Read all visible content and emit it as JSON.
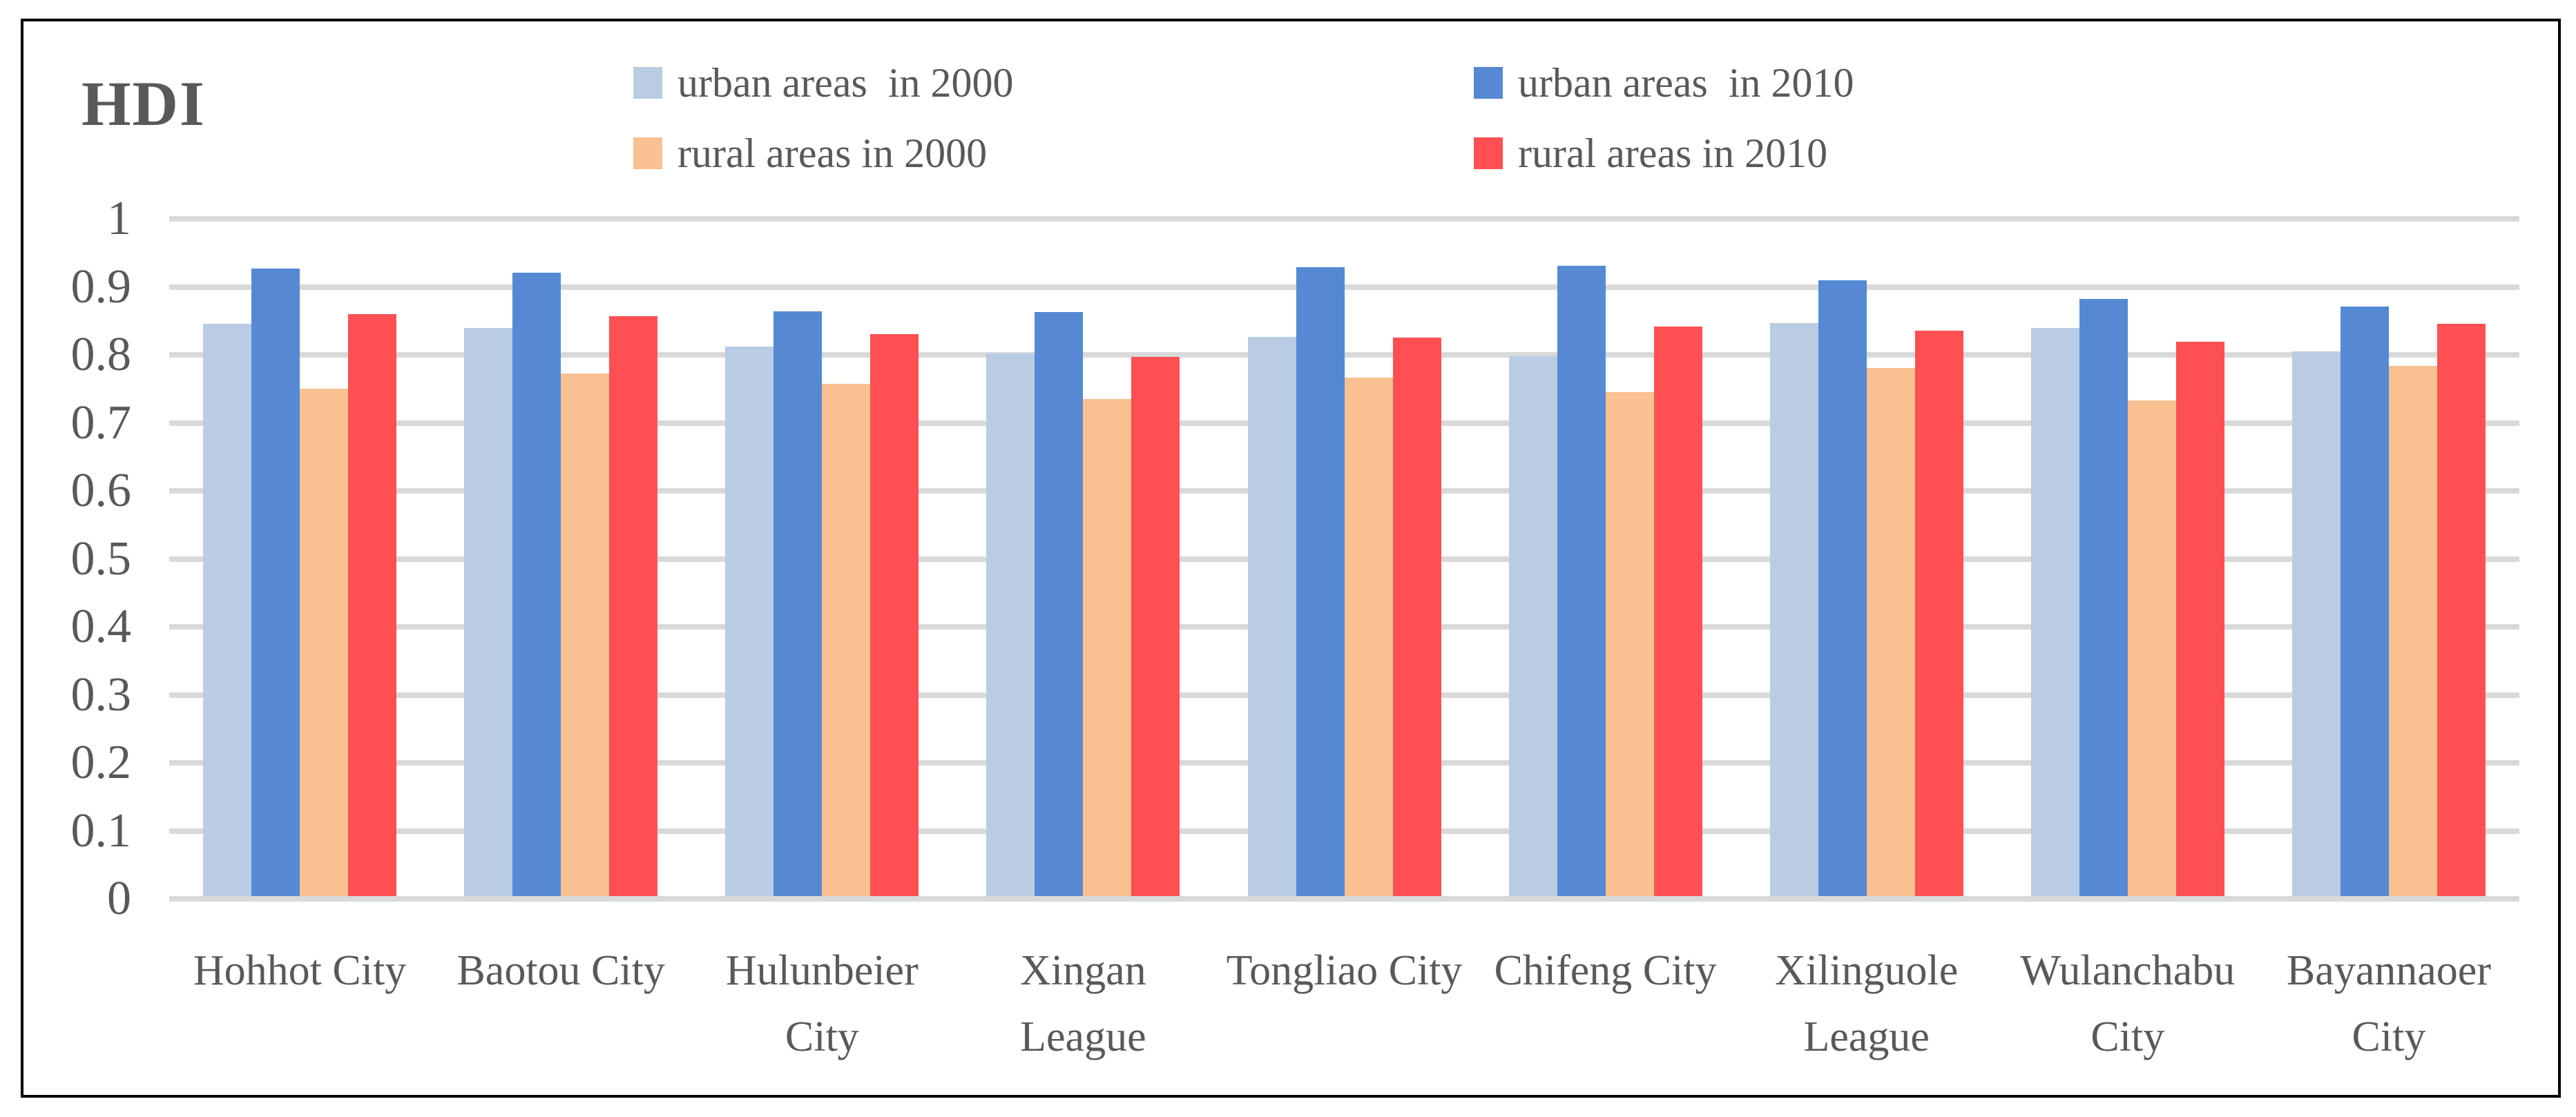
{
  "chart_data": {
    "type": "bar",
    "title": "HDI",
    "categories": [
      "Hohhot City",
      "Baotou City",
      "Hulunbeier City",
      "Xingan League",
      "Tongliao City",
      "Chifeng City",
      "Xilinguole League",
      "Wulanchabu City",
      "Bayannaoer City"
    ],
    "series": [
      {
        "name": "urban areas  in 2000",
        "color": "#B9CCE3",
        "values": [
          0.842,
          0.836,
          0.808,
          0.798,
          0.822,
          0.794,
          0.843,
          0.836,
          0.801
        ]
      },
      {
        "name": "urban areas  in 2010",
        "color": "#5589D4",
        "values": [
          0.923,
          0.917,
          0.86,
          0.859,
          0.925,
          0.927,
          0.906,
          0.878,
          0.867
        ]
      },
      {
        "name": "rural areas in 2000",
        "color": "#F9C191",
        "values": [
          0.746,
          0.769,
          0.753,
          0.731,
          0.762,
          0.741,
          0.777,
          0.729,
          0.78
        ]
      },
      {
        "name": "rural areas in 2010",
        "color": "#FE5052",
        "values": [
          0.856,
          0.853,
          0.826,
          0.793,
          0.821,
          0.838,
          0.831,
          0.815,
          0.842
        ]
      }
    ],
    "ylim": [
      0,
      1
    ],
    "y_tick_labels": [
      "0",
      "0.1",
      "0.2",
      "0.3",
      "0.4",
      "0.5",
      "0.6",
      "0.7",
      "0.8",
      "0.9",
      "1"
    ],
    "xlabel": "",
    "ylabel": "",
    "grid": true,
    "legend_position": "top",
    "colors": {
      "gridline": "#D9D9D9",
      "axis_text": "#595959",
      "frame_border": "#000000",
      "background": "#FFFFFF"
    }
  }
}
